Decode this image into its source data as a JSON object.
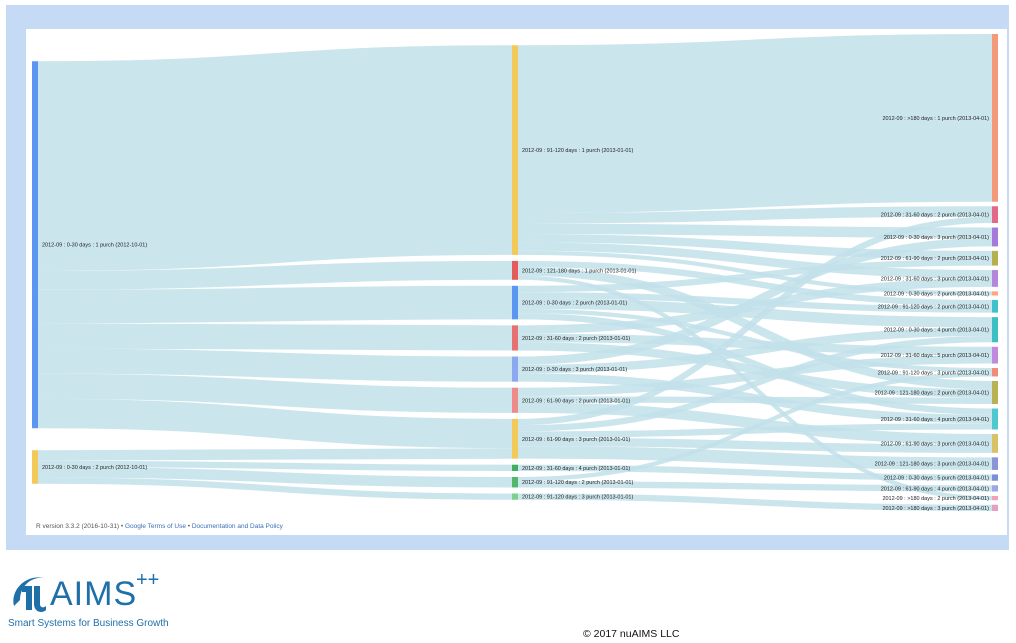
{
  "chart_data": {
    "type": "sankey",
    "colors": {
      "link": "#c2e0ea",
      "palette": [
        "#5b97f2",
        "#f3c95a",
        "#e35b5b",
        "#f2a07b",
        "#a07ad6",
        "#b5b04e",
        "#ffa48a",
        "#3fc1cc",
        "#4fb86b",
        "#8aa0e6",
        "#e69ab3",
        "#ee8a8a",
        "#d9c266"
      ]
    },
    "stages": [
      [
        {
          "id": "a0",
          "label": "2012-09 : 0-30 days : 1 purch (2012-10-01)",
          "color": "#5b97f2"
        },
        {
          "id": "a1",
          "label": "2012-09 : 0-30 days : 2 purch (2012-10-01)",
          "color": "#f3c95a"
        }
      ],
      [
        {
          "id": "b0",
          "label": "2012-09 : 91-120 days : 1 purch (2013-01-01)",
          "color": "#f3c95a"
        },
        {
          "id": "b1",
          "label": "2012-09 : 121-180 days : 1 purch (2013-01-01)",
          "color": "#e35b5b"
        },
        {
          "id": "b2",
          "label": "2012-09 : 0-30 days : 2 purch (2013-01-01)",
          "color": "#5b97f2"
        },
        {
          "id": "b3",
          "label": "2012-09 : 31-60 days : 2 purch (2013-01-01)",
          "color": "#e87070"
        },
        {
          "id": "b4",
          "label": "2012-09 : 0-30 days : 3 purch (2013-01-01)",
          "color": "#8aa9f0"
        },
        {
          "id": "b5",
          "label": "2012-09 : 61-90 days : 2 purch (2013-01-01)",
          "color": "#ee8a8a"
        },
        {
          "id": "b6",
          "label": "2012-09 : 61-90 days : 3 purch (2013-01-01)",
          "color": "#f3c95a"
        },
        {
          "id": "b7",
          "label": "2012-09 : 31-60 days : 4 purch (2013-01-01)",
          "color": "#3fae5e"
        },
        {
          "id": "b8",
          "label": "2012-09 : 91-120 days : 2 purch (2013-01-01)",
          "color": "#4fb86b"
        },
        {
          "id": "b9",
          "label": "2012-09 : 91-120 days : 3 purch (2013-01-01)",
          "color": "#7fcf8f"
        }
      ],
      [
        {
          "id": "c0",
          "label": "2012-09 : >180 days : 1 purch (2013-04-01)",
          "color": "#f29a7a"
        },
        {
          "id": "c1",
          "label": "2012-09 : 31-60 days : 2 purch (2013-04-01)",
          "color": "#e36a86"
        },
        {
          "id": "c2",
          "label": "2012-09 : 0-30 days : 3 purch (2013-04-01)",
          "color": "#a67ad8"
        },
        {
          "id": "c3",
          "label": "2012-09 : 61-90 days : 2 purch (2013-04-01)",
          "color": "#b5b04e"
        },
        {
          "id": "c4",
          "label": "2012-09 : 31-60 days : 3 purch (2013-04-01)",
          "color": "#b486dc"
        },
        {
          "id": "c5",
          "label": "2012-09 : 0-30 days : 2 purch (2013-04-01)",
          "color": "#ffa48a"
        },
        {
          "id": "c6",
          "label": "2012-09 : 91-120 days : 2 purch (2013-04-01)",
          "color": "#3fc1cc"
        },
        {
          "id": "c7",
          "label": "2012-09 : 0-30 days : 4 purch (2013-04-01)",
          "color": "#3dbfc5"
        },
        {
          "id": "c8",
          "label": "2012-09 : 31-60 days : 5 purch (2013-04-01)",
          "color": "#c08ade"
        },
        {
          "id": "c9",
          "label": "2012-09 : 91-120 days : 3 purch (2013-04-01)",
          "color": "#f08a7a"
        },
        {
          "id": "c10",
          "label": "2012-09 : 121-180 days : 2 purch (2013-04-01)",
          "color": "#b8b255"
        },
        {
          "id": "c11",
          "label": "2012-09 : 31-60 days : 4 purch (2013-04-01)",
          "color": "#50c8d0"
        },
        {
          "id": "c12",
          "label": "2012-09 : 61-90 days : 3 purch (2013-04-01)",
          "color": "#d9c266"
        },
        {
          "id": "c13",
          "label": "2012-09 : 121-180 days : 3 purch (2013-04-01)",
          "color": "#8a96d6"
        },
        {
          "id": "c14",
          "label": "2012-09 : 0-30 days : 5 purch (2013-04-01)",
          "color": "#7a8fd8"
        },
        {
          "id": "c15",
          "label": "2012-09 : 61-90 days : 4 purch (2013-04-01)",
          "color": "#9aa8e4"
        },
        {
          "id": "c16",
          "label": "2012-09 : >180 days : 2 purch (2013-04-01)",
          "color": "#f2a0b4"
        },
        {
          "id": "c17",
          "label": "2012-09 : >180 days : 3 purch (2013-04-01)",
          "color": "#e6a0c4"
        }
      ]
    ],
    "links": [
      {
        "source": "a0",
        "target": "b0",
        "value": 100
      },
      {
        "source": "a0",
        "target": "b1",
        "value": 9
      },
      {
        "source": "a0",
        "target": "b2",
        "value": 16
      },
      {
        "source": "a0",
        "target": "b3",
        "value": 12
      },
      {
        "source": "a0",
        "target": "b4",
        "value": 12
      },
      {
        "source": "a0",
        "target": "b5",
        "value": 12
      },
      {
        "source": "a0",
        "target": "b6",
        "value": 14
      },
      {
        "source": "a1",
        "target": "b6",
        "value": 5
      },
      {
        "source": "a1",
        "target": "b7",
        "value": 3
      },
      {
        "source": "a1",
        "target": "b8",
        "value": 5
      },
      {
        "source": "a1",
        "target": "b9",
        "value": 3
      },
      {
        "source": "b0",
        "target": "c0",
        "value": 80
      },
      {
        "source": "b0",
        "target": "c1",
        "value": 5
      },
      {
        "source": "b0",
        "target": "c2",
        "value": 5
      },
      {
        "source": "b0",
        "target": "c3",
        "value": 4
      },
      {
        "source": "b0",
        "target": "c4",
        "value": 4
      },
      {
        "source": "b0",
        "target": "c5",
        "value": 2
      },
      {
        "source": "b1",
        "target": "c6",
        "value": 3
      },
      {
        "source": "b1",
        "target": "c10",
        "value": 4
      },
      {
        "source": "b1",
        "target": "c16",
        "value": 2
      },
      {
        "source": "b2",
        "target": "c7",
        "value": 5
      },
      {
        "source": "b2",
        "target": "c3",
        "value": 3
      },
      {
        "source": "b2",
        "target": "c6",
        "value": 3
      },
      {
        "source": "b2",
        "target": "c9",
        "value": 2
      },
      {
        "source": "b2",
        "target": "c11",
        "value": 3
      },
      {
        "source": "b3",
        "target": "c4",
        "value": 4
      },
      {
        "source": "b3",
        "target": "c8",
        "value": 4
      },
      {
        "source": "b3",
        "target": "c10",
        "value": 4
      },
      {
        "source": "b4",
        "target": "c2",
        "value": 4
      },
      {
        "source": "b4",
        "target": "c7",
        "value": 4
      },
      {
        "source": "b4",
        "target": "c11",
        "value": 4
      },
      {
        "source": "b5",
        "target": "c8",
        "value": 4
      },
      {
        "source": "b5",
        "target": "c12",
        "value": 5
      },
      {
        "source": "b5",
        "target": "c10",
        "value": 3
      },
      {
        "source": "b6",
        "target": "c1",
        "value": 3
      },
      {
        "source": "b6",
        "target": "c13",
        "value": 6
      },
      {
        "source": "b6",
        "target": "c12",
        "value": 4
      },
      {
        "source": "b6",
        "target": "c7",
        "value": 3
      },
      {
        "source": "b6",
        "target": "c11",
        "value": 3
      },
      {
        "source": "b7",
        "target": "c14",
        "value": 3
      },
      {
        "source": "b8",
        "target": "c15",
        "value": 3
      },
      {
        "source": "b8",
        "target": "c9",
        "value": 2
      },
      {
        "source": "b9",
        "target": "c17",
        "value": 3
      }
    ]
  },
  "footer": {
    "r_version": "R version 3.3.2 (2016-10-31)",
    "bullet": " • ",
    "terms": "Google Terms of Use",
    "policy": "Documentation and Data Policy"
  },
  "brand": {
    "name": "AIMS",
    "sup": "++",
    "tagline": "Smart Systems for Business Growth",
    "mark_color": "#1f6fa8"
  },
  "copyright": "© 2017 nuAIMS LLC"
}
